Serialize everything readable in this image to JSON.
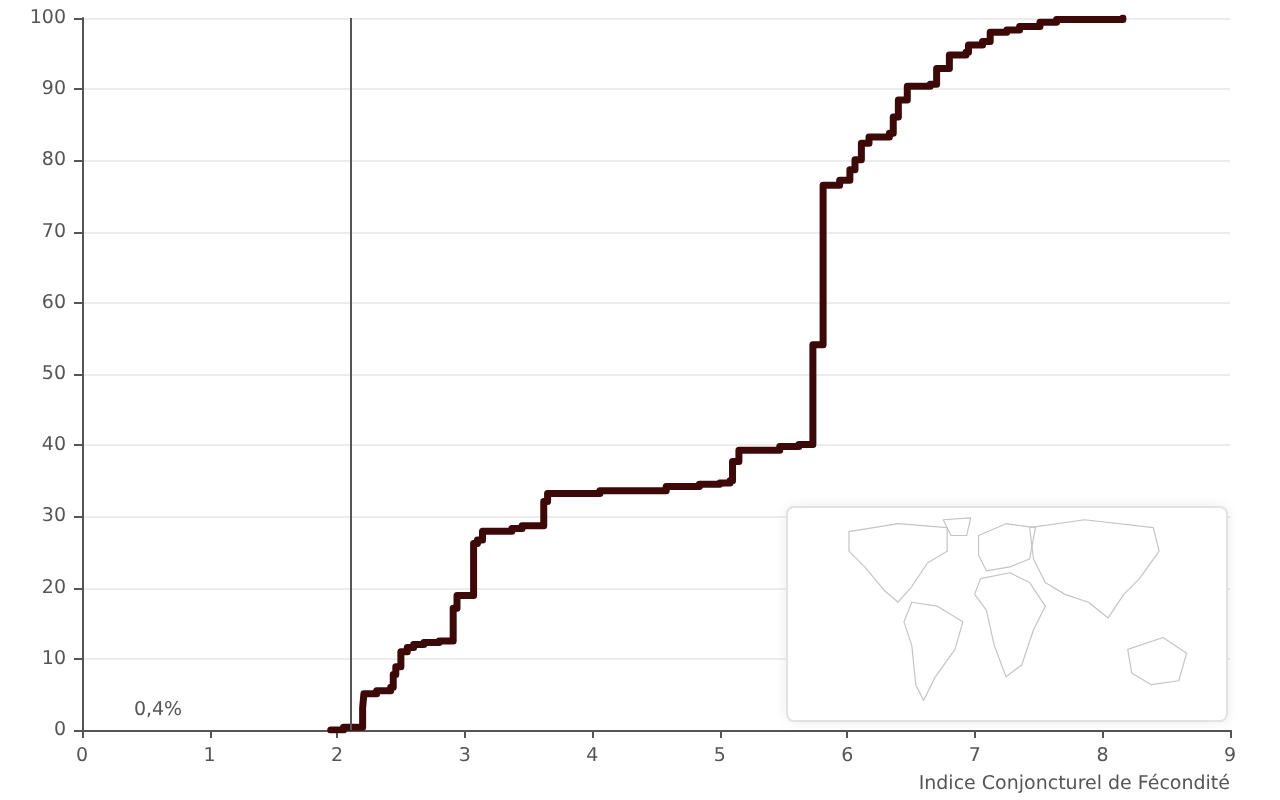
{
  "chart_data": {
    "type": "step",
    "xlabel": "Indice Conjoncturel de Fécondité",
    "x": [
      1.95,
      2.05,
      2.2,
      2.21,
      2.31,
      2.42,
      2.44,
      2.46,
      2.5,
      2.55,
      2.6,
      2.68,
      2.8,
      2.91,
      2.94,
      3.07,
      3.1,
      3.14,
      3.37,
      3.45,
      3.62,
      3.65,
      4.06,
      4.58,
      4.84,
      5.0,
      5.08,
      5.1,
      5.15,
      5.47,
      5.62,
      5.73,
      5.81,
      5.94,
      6.02,
      6.06,
      6.11,
      6.17,
      6.33,
      6.36,
      6.4,
      6.47,
      6.65,
      6.7,
      6.8,
      6.93,
      6.95,
      7.06,
      7.12,
      7.25,
      7.35,
      7.51,
      7.64,
      8.16
    ],
    "values": [
      0,
      0.4,
      3.1,
      5.1,
      5.5,
      6,
      7.8,
      8.9,
      11,
      11.6,
      12,
      12.3,
      12.5,
      17.1,
      18.9,
      26.2,
      26.7,
      27.9,
      28.3,
      28.7,
      32.1,
      33.2,
      33.6,
      34.2,
      34.5,
      34.7,
      35,
      37.7,
      39.3,
      39.8,
      40.1,
      54.1,
      76.5,
      77.2,
      78.7,
      80.1,
      82.4,
      83.3,
      83.8,
      86.1,
      88.5,
      90.4,
      90.7,
      92.9,
      94.8,
      95.2,
      96.2,
      96.7,
      98,
      98.3,
      98.8,
      99.4,
      99.8,
      100
    ],
    "color": "#3d0808",
    "marker": "none",
    "xlim": [
      0,
      9
    ],
    "xticks": [
      0,
      1,
      2,
      3,
      4,
      5,
      6,
      7,
      8,
      9
    ],
    "ylim": [
      0,
      100
    ],
    "yticks": [
      0,
      10,
      20,
      30,
      40,
      50,
      60,
      70,
      80,
      90,
      100
    ],
    "grid": "y",
    "ref_lines": [
      {
        "axis": "x",
        "value": 2.1,
        "color": "#555555"
      }
    ],
    "annotations": [
      "0,4%"
    ]
  }
}
